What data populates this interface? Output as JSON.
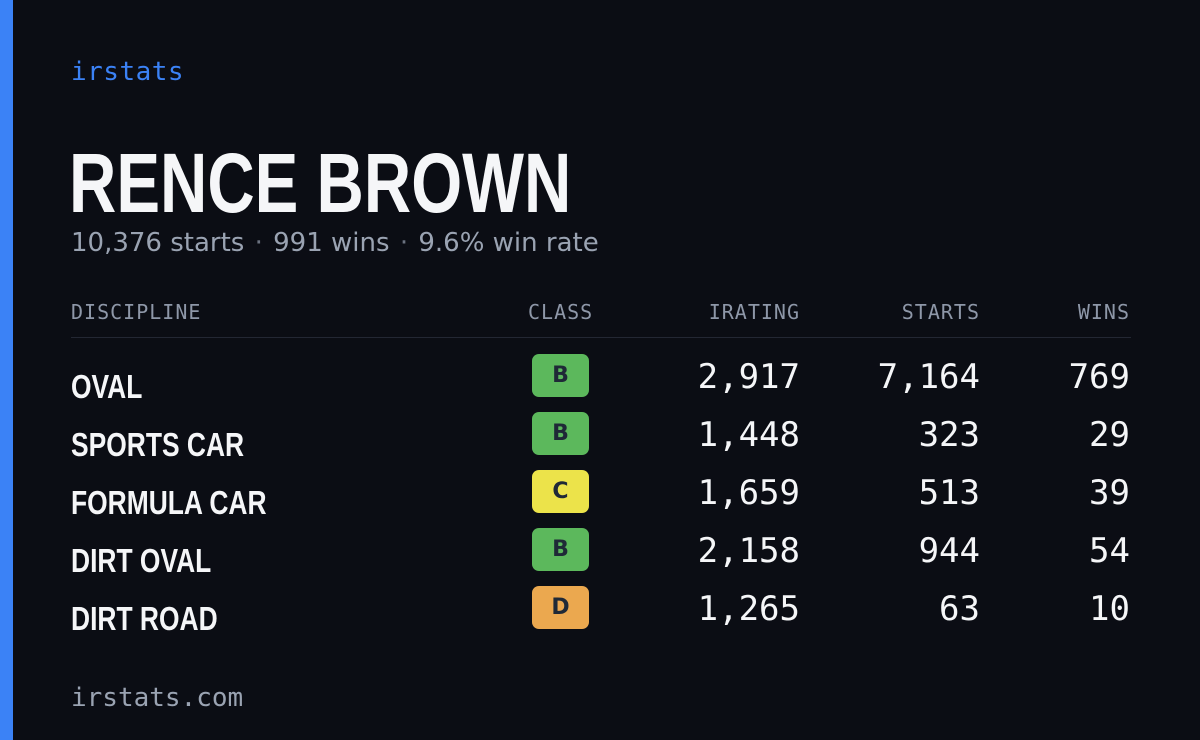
{
  "brand": "irstats",
  "driver": {
    "name": "RENCE BROWN"
  },
  "summary": {
    "starts": "10,376 starts",
    "wins": "991 wins",
    "win_rate": "9.6% win rate",
    "separator": "·"
  },
  "table": {
    "headers": {
      "discipline": "DISCIPLINE",
      "class": "CLASS",
      "irating": "IRATING",
      "starts": "STARTS",
      "wins": "WINS"
    },
    "rows": [
      {
        "discipline": "OVAL",
        "class": "B",
        "class_color": "#5cb85c",
        "irating": "2,917",
        "starts": "7,164",
        "wins": "769"
      },
      {
        "discipline": "SPORTS CAR",
        "class": "B",
        "class_color": "#5cb85c",
        "irating": "1,448",
        "starts": "323",
        "wins": "29"
      },
      {
        "discipline": "FORMULA CAR",
        "class": "C",
        "class_color": "#ece34a",
        "irating": "1,659",
        "starts": "513",
        "wins": "39"
      },
      {
        "discipline": "DIRT OVAL",
        "class": "B",
        "class_color": "#5cb85c",
        "irating": "2,158",
        "starts": "944",
        "wins": "54"
      },
      {
        "discipline": "DIRT ROAD",
        "class": "D",
        "class_color": "#eba84f",
        "irating": "1,265",
        "starts": "63",
        "wins": "10"
      }
    ]
  },
  "footer": {
    "url": "irstats.com"
  },
  "colors": {
    "accent": "#3b82f6",
    "background": "#0b0d14"
  }
}
